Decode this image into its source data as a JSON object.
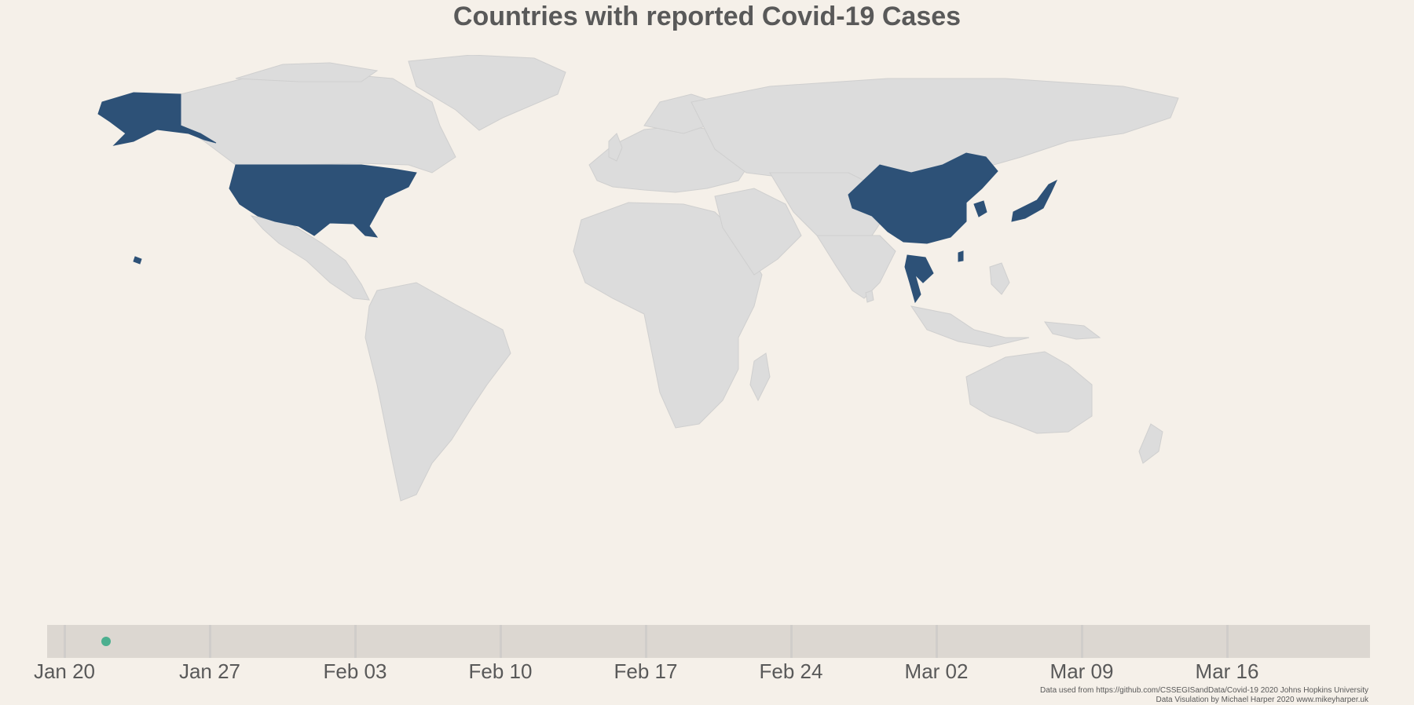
{
  "title": "Countries with reported Covid-19 Cases",
  "colors": {
    "background": "#f5f0e9",
    "land": "#dcdcdc",
    "border": "#cfcfcf",
    "highlight": "#2d5177",
    "slider_handle": "#4caf8f",
    "timeline_track": "#dcd7d1"
  },
  "map": {
    "highlighted_countries": [
      "United States",
      "China",
      "Japan",
      "Thailand",
      "Taiwan",
      "South Korea"
    ],
    "highlighted_regions": [
      "Alaska",
      "Hawaii"
    ]
  },
  "timeline": {
    "ticks": [
      "Jan 20",
      "Jan 27",
      "Feb 03",
      "Feb 10",
      "Feb 17",
      "Feb 24",
      "Mar 02",
      "Mar 09",
      "Mar 16"
    ],
    "current_day_offset": 2
  },
  "credits": {
    "line1": "Data used from  https://github.com/CSSEGISandData/Covid-19 2020 Johns Hopkins University",
    "line2": "Data Visulation by Michael Harper 2020 www.mikeyharper.uk"
  }
}
